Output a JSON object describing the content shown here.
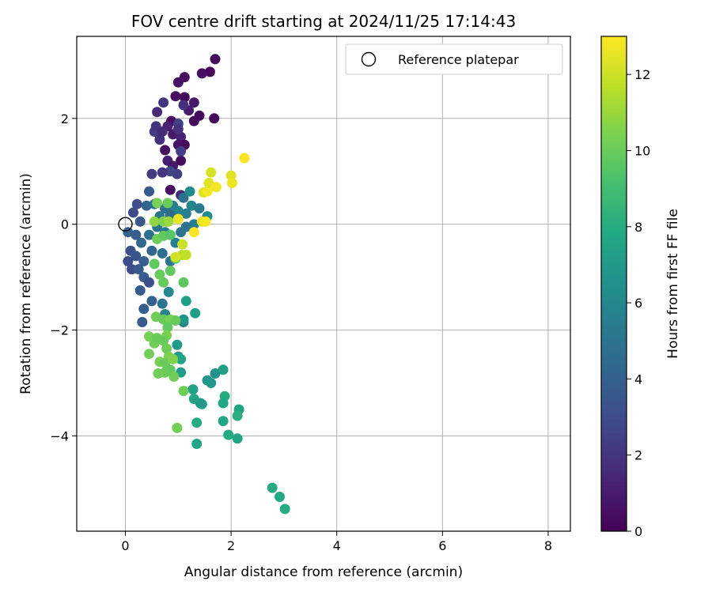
{
  "chart_data": {
    "type": "scatter",
    "title": "FOV centre drift starting at 2024/11/25 17:14:43",
    "xlabel": "Angular distance from reference (arcmin)",
    "ylabel": "Rotation from reference (arcmin)",
    "xlim": [
      -0.92,
      8.42
    ],
    "ylim": [
      -5.8,
      3.55
    ],
    "xticks": [
      0,
      2,
      4,
      6,
      8
    ],
    "yticks": [
      -4,
      -2,
      0,
      2
    ],
    "xtick_labels": [
      "0",
      "2",
      "4",
      "6",
      "8"
    ],
    "ytick_labels": [
      "−4",
      "−2",
      "0",
      "2"
    ],
    "grid": true,
    "legend": {
      "placement": "top-right",
      "label": "Reference platepar"
    },
    "reference_point": {
      "x": 0,
      "y": 0
    },
    "colorbar": {
      "label": "Hours from first FF file",
      "colormap": "viridis",
      "range": [
        0,
        13
      ],
      "ticks": [
        0,
        2,
        4,
        6,
        8,
        10,
        12
      ],
      "tick_labels": [
        "0",
        "2",
        "4",
        "6",
        "8",
        "10",
        "12"
      ]
    },
    "series": [
      {
        "points": [
          [
            1.7,
            3.12,
            0.3
          ],
          [
            1.6,
            2.88,
            0.2
          ],
          [
            1.45,
            2.85,
            0.5
          ],
          [
            1.12,
            2.78,
            0.4
          ],
          [
            1.0,
            2.68,
            0.6
          ],
          [
            0.95,
            2.42,
            0.5
          ],
          [
            1.12,
            2.4,
            0.3
          ],
          [
            1.3,
            2.3,
            0.8
          ],
          [
            1.2,
            2.15,
            1.0
          ],
          [
            1.4,
            2.05,
            0.4
          ],
          [
            1.68,
            2.0,
            0.2
          ],
          [
            1.3,
            1.95,
            0.3
          ],
          [
            0.87,
            1.95,
            0.4
          ],
          [
            0.8,
            1.85,
            1.2
          ],
          [
            0.9,
            1.7,
            0.9
          ],
          [
            1.05,
            1.65,
            1.3
          ],
          [
            1.12,
            1.5,
            0.2
          ],
          [
            1.0,
            1.5,
            0.6
          ],
          [
            0.75,
            1.4,
            0.5
          ],
          [
            0.8,
            1.2,
            1.1
          ],
          [
            0.9,
            1.1,
            0.8
          ],
          [
            1.05,
            1.2,
            0.4
          ],
          [
            0.55,
            1.75,
            2.2
          ],
          [
            0.65,
            1.6,
            1.8
          ],
          [
            0.72,
            2.3,
            2.0
          ],
          [
            0.6,
            2.12,
            1.6
          ],
          [
            1.1,
            2.25,
            1.8
          ],
          [
            1.0,
            1.9,
            2.5
          ],
          [
            0.58,
            1.85,
            2.0
          ],
          [
            0.7,
            1.75,
            1.6
          ],
          [
            0.5,
            0.95,
            2.2
          ],
          [
            0.85,
            1.0,
            2.6
          ],
          [
            0.98,
            0.95,
            2.4
          ],
          [
            1.05,
            1.38,
            2.3
          ],
          [
            1.0,
            1.8,
            1.9
          ],
          [
            0.85,
            0.65,
            0.5
          ],
          [
            1.05,
            0.55,
            1.5
          ],
          [
            1.1,
            0.5,
            5.0
          ],
          [
            0.45,
            0.62,
            3.6
          ],
          [
            0.7,
            0.98,
            2.0
          ],
          [
            1.22,
            0.62,
            6.2
          ],
          [
            1.25,
            0.35,
            6.0
          ],
          [
            1.4,
            0.3,
            5.4
          ],
          [
            1.55,
            0.15,
            6.2
          ],
          [
            1.3,
            0.0,
            5.5
          ],
          [
            0.15,
            0.22,
            3.0
          ],
          [
            0.22,
            0.38,
            3.2
          ],
          [
            0.28,
            0.05,
            3.5
          ],
          [
            0.4,
            0.35,
            4.2
          ],
          [
            0.55,
            0.38,
            4.8
          ],
          [
            0.65,
            0.15,
            5.0
          ],
          [
            0.78,
            0.05,
            5.2
          ],
          [
            0.9,
            0.35,
            5.5
          ],
          [
            1.0,
            0.25,
            5.8
          ],
          [
            1.15,
            0.2,
            5.6
          ],
          [
            0.85,
            0.18,
            4.5
          ],
          [
            0.75,
            0.3,
            4.8
          ],
          [
            0.05,
            -0.15,
            4.0
          ],
          [
            0.2,
            -0.2,
            3.8
          ],
          [
            0.3,
            -0.35,
            4.3
          ],
          [
            0.45,
            -0.2,
            4.7
          ],
          [
            0.6,
            -0.05,
            5.0
          ],
          [
            0.75,
            -0.15,
            5.3
          ],
          [
            0.95,
            -0.35,
            5.6
          ],
          [
            1.05,
            -0.15,
            5.0
          ],
          [
            1.15,
            -0.05,
            4.9
          ],
          [
            0.1,
            -0.5,
            3.2
          ],
          [
            0.2,
            -0.6,
            3.4
          ],
          [
            0.35,
            -0.7,
            3.9
          ],
          [
            0.5,
            -0.5,
            4.2
          ],
          [
            0.7,
            -0.55,
            4.7
          ],
          [
            0.85,
            -0.7,
            5.0
          ],
          [
            0.05,
            -0.7,
            3.1
          ],
          [
            0.12,
            -0.85,
            3.0
          ],
          [
            0.25,
            -0.85,
            3.6
          ],
          [
            0.35,
            -1.0,
            3.8
          ],
          [
            0.45,
            -1.1,
            3.2
          ],
          [
            0.5,
            -1.45,
            4.0
          ],
          [
            0.28,
            -1.25,
            3.7
          ],
          [
            0.35,
            -1.6,
            3.9
          ],
          [
            0.32,
            -1.85,
            3.7
          ],
          [
            0.7,
            -1.5,
            5.0
          ],
          [
            0.82,
            -1.28,
            6.0
          ],
          [
            0.75,
            -1.7,
            5.8
          ],
          [
            1.15,
            -1.45,
            7.3
          ],
          [
            1.1,
            -1.85,
            5.4
          ],
          [
            1.32,
            -1.68,
            7.2
          ],
          [
            1.1,
            -1.8,
            6.8
          ],
          [
            0.98,
            -2.28,
            7.0
          ],
          [
            1.0,
            -2.5,
            6.8
          ],
          [
            1.05,
            -2.55,
            7.5
          ],
          [
            1.05,
            -2.8,
            7.0
          ],
          [
            1.28,
            -3.12,
            7.4
          ],
          [
            1.3,
            -3.3,
            7.6
          ],
          [
            1.45,
            -3.4,
            7.4
          ],
          [
            1.42,
            -3.38,
            7.0
          ],
          [
            1.55,
            -2.95,
            6.8
          ],
          [
            1.62,
            -3.0,
            6.9
          ],
          [
            1.7,
            -2.82,
            6.5
          ],
          [
            1.85,
            -2.75,
            7.2
          ],
          [
            1.88,
            -3.25,
            8.0
          ],
          [
            1.85,
            -3.38,
            7.8
          ],
          [
            2.15,
            -3.5,
            7.5
          ],
          [
            2.12,
            -3.62,
            8.1
          ],
          [
            1.85,
            -3.72,
            7.7
          ],
          [
            1.35,
            -3.75,
            7.9
          ],
          [
            1.95,
            -3.98,
            7.9
          ],
          [
            2.12,
            -4.05,
            7.6
          ],
          [
            1.35,
            -4.15,
            7.7
          ],
          [
            2.78,
            -4.98,
            7.9
          ],
          [
            2.92,
            -5.15,
            7.8
          ],
          [
            3.02,
            -5.38,
            8.0
          ],
          [
            1.1,
            -1.1,
            9.7
          ],
          [
            0.95,
            -0.65,
            9.5
          ],
          [
            0.85,
            -0.88,
            9.8
          ],
          [
            0.72,
            -1.1,
            9.9
          ],
          [
            0.65,
            -0.95,
            10.0
          ],
          [
            0.55,
            -0.75,
            9.8
          ],
          [
            0.6,
            -0.28,
            10.1
          ],
          [
            0.72,
            -0.22,
            9.8
          ],
          [
            0.85,
            -0.2,
            9.5
          ],
          [
            0.58,
            -1.75,
            10.2
          ],
          [
            0.72,
            -1.8,
            10.0
          ],
          [
            0.85,
            -1.8,
            10.3
          ],
          [
            0.95,
            -1.82,
            10.0
          ],
          [
            0.8,
            -1.95,
            9.8
          ],
          [
            0.78,
            -2.1,
            10.4
          ],
          [
            0.72,
            -2.2,
            10.0
          ],
          [
            0.45,
            -2.12,
            10.3
          ],
          [
            0.55,
            -2.25,
            10.2
          ],
          [
            0.6,
            -2.15,
            10.0
          ],
          [
            0.78,
            -2.35,
            10.1
          ],
          [
            0.82,
            -2.5,
            10.4
          ],
          [
            0.65,
            -2.6,
            10.3
          ],
          [
            0.75,
            -2.62,
            10.0
          ],
          [
            0.9,
            -2.55,
            10.5
          ],
          [
            0.45,
            -2.45,
            10.2
          ],
          [
            0.85,
            -2.75,
            9.8
          ],
          [
            0.92,
            -2.88,
            10.1
          ],
          [
            0.75,
            -2.8,
            10.0
          ],
          [
            0.62,
            -2.82,
            10.2
          ],
          [
            1.1,
            -3.15,
            10.1
          ],
          [
            0.98,
            -3.85,
            10.2
          ],
          [
            0.6,
            0.4,
            10.3
          ],
          [
            0.55,
            0.05,
            10.8
          ],
          [
            0.72,
            0.05,
            10.5
          ],
          [
            0.82,
            0.05,
            11.0
          ],
          [
            0.8,
            0.4,
            10.0
          ],
          [
            1.08,
            -0.58,
            11.6
          ],
          [
            1.15,
            -0.58,
            11.8
          ],
          [
            1.08,
            -0.38,
            12.0
          ],
          [
            0.95,
            -0.62,
            12.1
          ],
          [
            1.0,
            0.1,
            12.6
          ],
          [
            1.3,
            -0.15,
            12.9
          ],
          [
            1.45,
            0.05,
            12.5
          ],
          [
            1.52,
            0.05,
            12.8
          ],
          [
            1.48,
            0.6,
            12.4
          ],
          [
            1.55,
            0.62,
            12.8
          ],
          [
            1.58,
            0.78,
            12.5
          ],
          [
            1.72,
            0.7,
            12.8
          ],
          [
            1.62,
            0.98,
            12.2
          ],
          [
            2.0,
            0.92,
            12.4
          ],
          [
            2.02,
            0.78,
            12.6
          ],
          [
            2.25,
            1.25,
            12.9
          ]
        ]
      }
    ]
  }
}
